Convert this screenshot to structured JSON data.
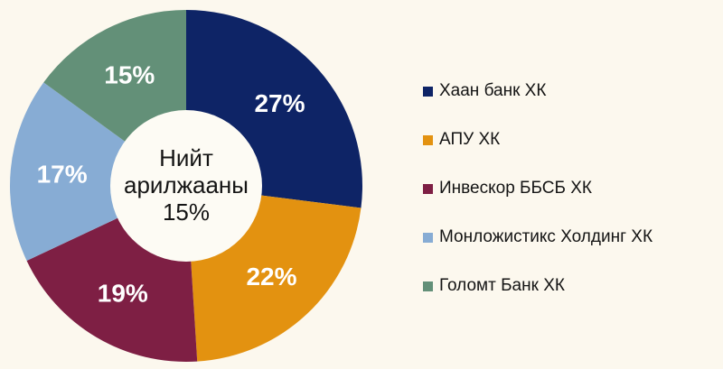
{
  "canvas": {
    "background": "#FCF8EE",
    "hole_color": "#FDFBF4",
    "text_color": "#141414",
    "slice_label_color": "#FFFFFF"
  },
  "chart_data": {
    "type": "pie",
    "subtype": "donut",
    "title": "",
    "categories": [
      "Хаан банк ХК",
      "АПУ ХК",
      "Инвескор ББСБ ХК",
      "Монложистикс Холдинг ХК",
      "Голомт Банк ХК"
    ],
    "values": [
      27,
      22,
      19,
      17,
      15
    ],
    "labels": [
      "27%",
      "22%",
      "19%",
      "17%",
      "15%"
    ],
    "colors": [
      "#0E2466",
      "#E39210",
      "#7E1F44",
      "#87ACD4",
      "#639078"
    ],
    "start_angle_deg": 0,
    "direction": "clockwise",
    "legend_position": "right",
    "center_label": "Нийт арилжааны 15%",
    "center_lines": [
      "Нийт",
      "арилжааны",
      "15%"
    ]
  },
  "legend": {
    "items": [
      {
        "label": "Хаан банк ХК"
      },
      {
        "label": "АПУ ХК"
      },
      {
        "label": "Инвескор ББСБ ХК"
      },
      {
        "label": "Монложистикс Холдинг ХК"
      },
      {
        "label": "Голомт Банк ХК"
      }
    ]
  }
}
